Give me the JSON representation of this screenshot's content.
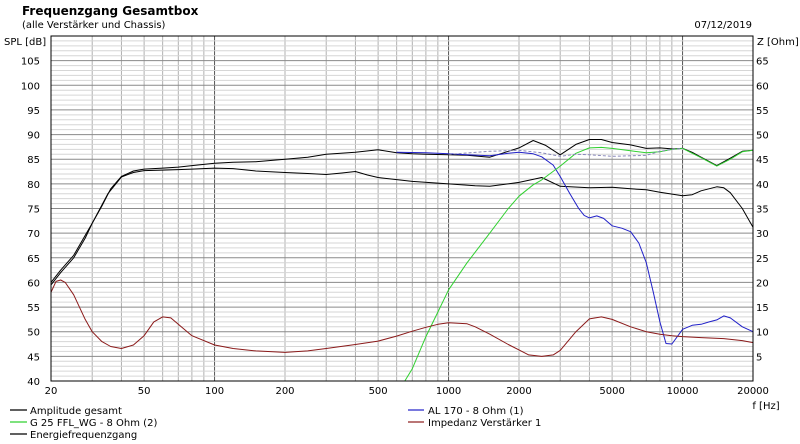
{
  "chart_data": {
    "type": "line",
    "title": "Frequenzgang Gesamtbox",
    "subtitle": "(alle Verstärker und Chassis)",
    "date": "07/12/2019",
    "ylabel_left": "SPL [dB]",
    "ylabel_right": "Z [Ohm]",
    "xlabel": "f [Hz]",
    "x_scale": "log",
    "xlim": [
      20,
      20000
    ],
    "ylim_left": [
      40,
      110
    ],
    "ylim_right": [
      0,
      70
    ],
    "grid": true,
    "x_ticks": [
      {
        "v": 20,
        "label": "20"
      },
      {
        "v": 50,
        "label": "50"
      },
      {
        "v": 100,
        "label": "100"
      },
      {
        "v": 200,
        "label": "200"
      },
      {
        "v": 500,
        "label": "500"
      },
      {
        "v": 1000,
        "label": "1000"
      },
      {
        "v": 2000,
        "label": "2000"
      },
      {
        "v": 5000,
        "label": "5000"
      },
      {
        "v": 10000,
        "label": "10000"
      },
      {
        "v": 20000,
        "label": "20000"
      }
    ],
    "y_ticks_left": [
      {
        "v": 40,
        "label": "40"
      },
      {
        "v": 45,
        "label": "45"
      },
      {
        "v": 50,
        "label": "50"
      },
      {
        "v": 55,
        "label": "55"
      },
      {
        "v": 60,
        "label": "60"
      },
      {
        "v": 65,
        "label": "65"
      },
      {
        "v": 70,
        "label": "70"
      },
      {
        "v": 75,
        "label": "75"
      },
      {
        "v": 80,
        "label": "80"
      },
      {
        "v": 85,
        "label": "85"
      },
      {
        "v": 90,
        "label": "90"
      },
      {
        "v": 95,
        "label": "95"
      },
      {
        "v": 100,
        "label": "100"
      },
      {
        "v": 105,
        "label": "105"
      }
    ],
    "y_ticks_right": [
      {
        "v": 5,
        "label": "5"
      },
      {
        "v": 10,
        "label": "10"
      },
      {
        "v": 15,
        "label": "15"
      },
      {
        "v": 20,
        "label": "20"
      },
      {
        "v": 25,
        "label": "25"
      },
      {
        "v": 30,
        "label": "30"
      },
      {
        "v": 35,
        "label": "35"
      },
      {
        "v": 40,
        "label": "40"
      },
      {
        "v": 45,
        "label": "45"
      },
      {
        "v": 50,
        "label": "50"
      },
      {
        "v": 55,
        "label": "55"
      },
      {
        "v": 60,
        "label": "60"
      },
      {
        "v": 65,
        "label": "65"
      }
    ],
    "series": [
      {
        "name": "Amplitude gesamt",
        "color": "#000000",
        "axis": "left",
        "points": [
          [
            20,
            59.5
          ],
          [
            22,
            62
          ],
          [
            25,
            65
          ],
          [
            28,
            69
          ],
          [
            30,
            72
          ],
          [
            33,
            75.5
          ],
          [
            36,
            79
          ],
          [
            40,
            81.5
          ],
          [
            45,
            82.6
          ],
          [
            50,
            83
          ],
          [
            60,
            83.2
          ],
          [
            70,
            83.4
          ],
          [
            80,
            83.7
          ],
          [
            100,
            84.2
          ],
          [
            120,
            84.4
          ],
          [
            150,
            84.5
          ],
          [
            200,
            85
          ],
          [
            250,
            85.4
          ],
          [
            300,
            86
          ],
          [
            400,
            86.4
          ],
          [
            500,
            86.9
          ],
          [
            600,
            86.3
          ],
          [
            700,
            86.1
          ],
          [
            800,
            86
          ],
          [
            1000,
            85.9
          ],
          [
            1200,
            85.8
          ],
          [
            1500,
            85.4
          ],
          [
            1800,
            86.6
          ],
          [
            2000,
            87.3
          ],
          [
            2300,
            88.8
          ],
          [
            2600,
            87.8
          ],
          [
            3000,
            85.9
          ],
          [
            3500,
            88
          ],
          [
            4000,
            89
          ],
          [
            4500,
            89
          ],
          [
            5000,
            88.4
          ],
          [
            6000,
            87.9
          ],
          [
            7000,
            87.2
          ],
          [
            8000,
            87.3
          ],
          [
            9000,
            87.1
          ],
          [
            10000,
            87.2
          ],
          [
            11000,
            86.4
          ],
          [
            12000,
            85.4
          ],
          [
            14000,
            83.7
          ],
          [
            16000,
            85.2
          ],
          [
            18000,
            86.6
          ],
          [
            20000,
            86.8
          ]
        ]
      },
      {
        "name": "Energiefrequenzgang",
        "color": "#000000",
        "axis": "left",
        "points": [
          [
            20,
            60
          ],
          [
            22,
            62.5
          ],
          [
            25,
            65.5
          ],
          [
            30,
            72
          ],
          [
            35,
            78
          ],
          [
            40,
            81.4
          ],
          [
            45,
            82.3
          ],
          [
            50,
            82.7
          ],
          [
            60,
            82.8
          ],
          [
            70,
            82.9
          ],
          [
            80,
            83
          ],
          [
            100,
            83.2
          ],
          [
            120,
            83.1
          ],
          [
            150,
            82.6
          ],
          [
            200,
            82.3
          ],
          [
            250,
            82.1
          ],
          [
            300,
            81.9
          ],
          [
            350,
            82.2
          ],
          [
            400,
            82.5
          ],
          [
            450,
            81.8
          ],
          [
            500,
            81.3
          ],
          [
            700,
            80.5
          ],
          [
            1000,
            80
          ],
          [
            1300,
            79.6
          ],
          [
            1500,
            79.5
          ],
          [
            2000,
            80.3
          ],
          [
            2500,
            81.3
          ],
          [
            3000,
            79.5
          ],
          [
            4000,
            79.2
          ],
          [
            5000,
            79.3
          ],
          [
            6000,
            79
          ],
          [
            7000,
            78.8
          ],
          [
            8000,
            78.3
          ],
          [
            10000,
            77.6
          ],
          [
            11000,
            77.8
          ],
          [
            12000,
            78.6
          ],
          [
            14000,
            79.4
          ],
          [
            15000,
            79.2
          ],
          [
            16000,
            78.2
          ],
          [
            18000,
            75
          ],
          [
            20000,
            71.2
          ]
        ]
      },
      {
        "name": "AL 170 - 8 Ohm (1)",
        "color": "#2020c8",
        "axis": "left",
        "points": [
          [
            600,
            86.4
          ],
          [
            800,
            86.3
          ],
          [
            1000,
            86.1
          ],
          [
            1200,
            85.9
          ],
          [
            1500,
            85.7
          ],
          [
            1800,
            86.2
          ],
          [
            2000,
            86.4
          ],
          [
            2300,
            86.1
          ],
          [
            2500,
            85.5
          ],
          [
            2800,
            83.8
          ],
          [
            3000,
            81.5
          ],
          [
            3300,
            78
          ],
          [
            3600,
            75
          ],
          [
            3800,
            73.6
          ],
          [
            4000,
            73.1
          ],
          [
            4300,
            73.5
          ],
          [
            4600,
            73
          ],
          [
            5000,
            71.5
          ],
          [
            5500,
            71
          ],
          [
            6000,
            70.3
          ],
          [
            6500,
            68
          ],
          [
            7000,
            64
          ],
          [
            7500,
            58
          ],
          [
            8000,
            52
          ],
          [
            8500,
            47.6
          ],
          [
            9000,
            47.5
          ],
          [
            10000,
            50.5
          ],
          [
            11000,
            51.3
          ],
          [
            12000,
            51.5
          ],
          [
            13000,
            52
          ],
          [
            14000,
            52.4
          ],
          [
            15000,
            53.2
          ],
          [
            16000,
            52.8
          ],
          [
            18000,
            51
          ],
          [
            20000,
            50
          ]
        ]
      },
      {
        "name": "G 25 FFL_WG - 8 Ohm (2)",
        "color": "#30d030",
        "axis": "left",
        "points": [
          [
            650,
            40
          ],
          [
            700,
            42.5
          ],
          [
            800,
            49
          ],
          [
            900,
            54
          ],
          [
            1000,
            58.5
          ],
          [
            1200,
            64
          ],
          [
            1500,
            70
          ],
          [
            1800,
            75
          ],
          [
            2000,
            77.5
          ],
          [
            2300,
            79.8
          ],
          [
            2500,
            80.8
          ],
          [
            3000,
            83.6
          ],
          [
            3500,
            86.2
          ],
          [
            4000,
            87.3
          ],
          [
            4500,
            87.4
          ],
          [
            5000,
            87.2
          ],
          [
            6000,
            86.7
          ],
          [
            7000,
            86.3
          ],
          [
            8000,
            86.5
          ],
          [
            9000,
            87
          ],
          [
            10000,
            87.2
          ],
          [
            12000,
            85.3
          ],
          [
            14000,
            83.6
          ],
          [
            16000,
            85
          ],
          [
            18000,
            86.5
          ],
          [
            20000,
            86.8
          ]
        ]
      },
      {
        "name": "Impedanz Verstärker 1",
        "color": "#8b1a1a",
        "axis": "right",
        "points": [
          [
            20,
            18
          ],
          [
            21,
            20.2
          ],
          [
            22,
            20.5
          ],
          [
            23,
            20
          ],
          [
            25,
            17.5
          ],
          [
            28,
            12.5
          ],
          [
            30,
            10
          ],
          [
            33,
            8
          ],
          [
            36,
            7
          ],
          [
            40,
            6.6
          ],
          [
            45,
            7.3
          ],
          [
            50,
            9.2
          ],
          [
            55,
            12
          ],
          [
            60,
            13
          ],
          [
            65,
            12.8
          ],
          [
            70,
            11.5
          ],
          [
            80,
            9.2
          ],
          [
            100,
            7.3
          ],
          [
            120,
            6.6
          ],
          [
            150,
            6.1
          ],
          [
            200,
            5.8
          ],
          [
            250,
            6.1
          ],
          [
            300,
            6.6
          ],
          [
            400,
            7.4
          ],
          [
            500,
            8.1
          ],
          [
            600,
            9.1
          ],
          [
            700,
            10.1
          ],
          [
            800,
            10.9
          ],
          [
            900,
            11.5
          ],
          [
            1000,
            11.8
          ],
          [
            1200,
            11.6
          ],
          [
            1300,
            11
          ],
          [
            1500,
            9.5
          ],
          [
            1800,
            7.4
          ],
          [
            2000,
            6.3
          ],
          [
            2200,
            5.3
          ],
          [
            2500,
            5
          ],
          [
            2800,
            5.3
          ],
          [
            3000,
            6.2
          ],
          [
            3500,
            10
          ],
          [
            4000,
            12.6
          ],
          [
            4500,
            13
          ],
          [
            5000,
            12.5
          ],
          [
            6000,
            11
          ],
          [
            7000,
            10
          ],
          [
            8000,
            9.5
          ],
          [
            9000,
            9.2
          ],
          [
            10000,
            9
          ],
          [
            12000,
            8.8
          ],
          [
            15000,
            8.6
          ],
          [
            18000,
            8.2
          ],
          [
            20000,
            7.8
          ]
        ]
      },
      {
        "name": "",
        "color": "#8888bb",
        "axis": "left",
        "dashed": true,
        "points": [
          [
            1000,
            86
          ],
          [
            1500,
            86.6
          ],
          [
            2000,
            86.8
          ],
          [
            2500,
            86.3
          ],
          [
            3000,
            85.6
          ],
          [
            3500,
            86
          ],
          [
            4000,
            85.9
          ],
          [
            5000,
            85.6
          ],
          [
            6000,
            85.7
          ],
          [
            7000,
            85.8
          ],
          [
            8000,
            86.6
          ],
          [
            9000,
            87
          ],
          [
            10000,
            87.2
          ]
        ]
      }
    ],
    "legend": {
      "placement": "bottom",
      "left": [
        {
          "label": "Amplitude gesamt",
          "color": "#000000"
        },
        {
          "label": "G 25 FFL_WG - 8 Ohm (2)",
          "color": "#30d030"
        },
        {
          "label": "Energiefrequenzgang",
          "color": "#000000"
        }
      ],
      "right": [
        {
          "label": "AL 170 - 8 Ohm (1)",
          "color": "#2020c8"
        },
        {
          "label": "Impedanz Verstärker 1",
          "color": "#8b1a1a"
        }
      ]
    }
  }
}
